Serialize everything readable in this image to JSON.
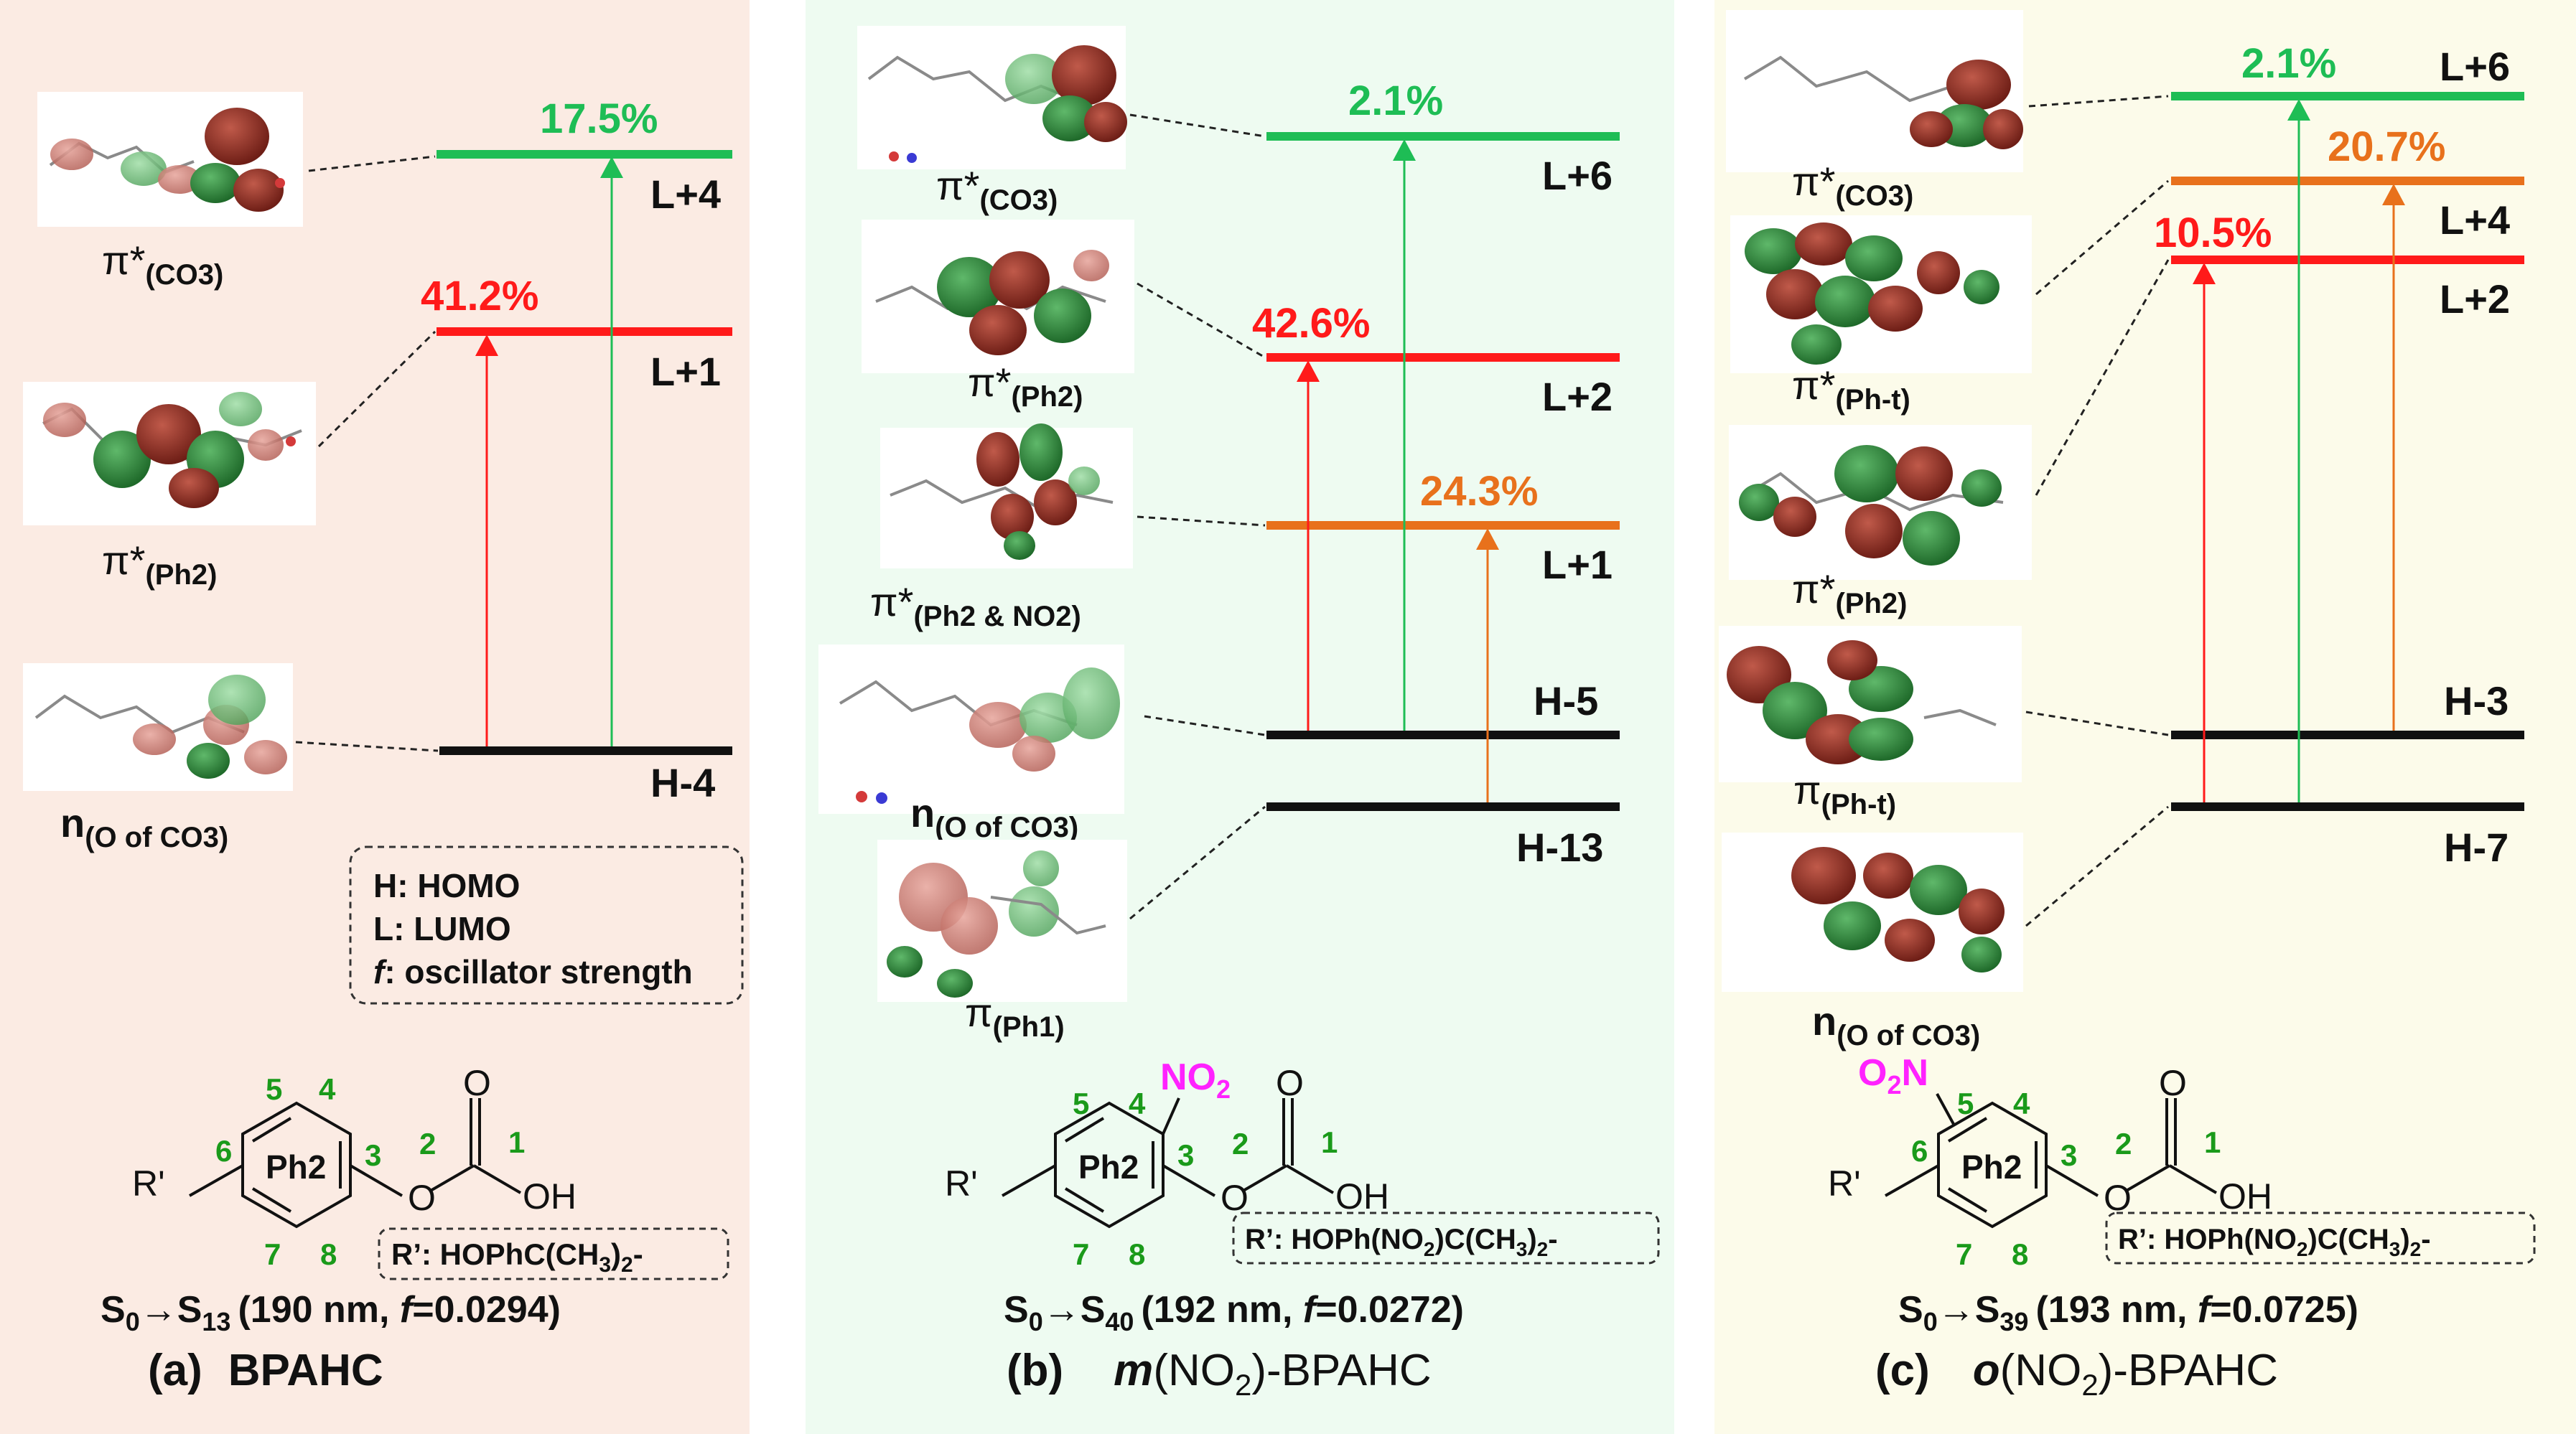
{
  "colors": {
    "panel_a_bg": "#fbebe3",
    "panel_b_bg": "#eefbf1",
    "panel_c_bg": "#fcfbea",
    "green": "#1ebd55",
    "red": "#ff1a1a",
    "orange": "#e8711c",
    "black": "#111111",
    "label_green": "#1a9a1a",
    "magenta": "#ff22ff",
    "orbital_red": "#8f2a20",
    "orbital_green": "#2f8a3a"
  },
  "legend": {
    "line1": "H: HOMO",
    "line2": "L: LUMO",
    "line3_f": "f",
    "line3_rest": ": oscillator strength"
  },
  "panels": [
    {
      "id": "a",
      "caption_letter": "(a)",
      "caption_name": "BPAHC",
      "transition": {
        "s0": "S",
        "s0_sub": "0",
        "arrow": "→",
        "sn": "S",
        "sn_sub": "13",
        "wavelength": "190 nm, ",
        "f_label": "f",
        "f_value": "=0.0294)",
        "open": "("
      },
      "levels": [
        {
          "label": "L+4",
          "color": "green"
        },
        {
          "label": "L+1",
          "color": "red"
        },
        {
          "label": "H-4",
          "color": "black"
        }
      ],
      "transitions": [
        {
          "percent": "17.5%",
          "color": "green"
        },
        {
          "percent": "41.2%",
          "color": "red"
        }
      ],
      "orbitals": [
        {
          "main": "π*",
          "sub": "(CO3)"
        },
        {
          "main": "π*",
          "sub": "(Ph2)"
        },
        {
          "main": "n",
          "sub": "(O of CO3)"
        }
      ],
      "structure": {
        "r_group": "R'",
        "ring": "Ph2",
        "oh": "OH",
        "no2": "",
        "r_def_prefix": "R’: HOPhC(CH",
        "r_def_sub": "3",
        "r_def_suffix": ")",
        "r_def_sub2": "2",
        "r_def_end": "-",
        "numbers": [
          "1",
          "2",
          "3",
          "4",
          "5",
          "6",
          "7",
          "8"
        ]
      }
    },
    {
      "id": "b",
      "caption_letter": "(b)",
      "caption_name_italic": "m",
      "caption_name": "(NO",
      "caption_sub": "2",
      "caption_end": ")-BPAHC",
      "transition": {
        "s0": "S",
        "s0_sub": "0",
        "arrow": "→",
        "sn": "S",
        "sn_sub": "40",
        "wavelength": "192 nm, ",
        "f_label": "f",
        "f_value": "=0.0272)",
        "open": "("
      },
      "levels": [
        {
          "label": "L+6",
          "color": "green"
        },
        {
          "label": "L+2",
          "color": "red"
        },
        {
          "label": "L+1",
          "color": "orange"
        },
        {
          "label": "H-5",
          "color": "black"
        },
        {
          "label": "H-13",
          "color": "black"
        }
      ],
      "transitions": [
        {
          "percent": "2.1%",
          "color": "green"
        },
        {
          "percent": "42.6%",
          "color": "red"
        },
        {
          "percent": "24.3%",
          "color": "orange"
        }
      ],
      "orbitals": [
        {
          "main": "π*",
          "sub": "(CO3)"
        },
        {
          "main": "π*",
          "sub": "(Ph2)"
        },
        {
          "main": "π*",
          "sub": "(Ph2 & NO2)"
        },
        {
          "main": "n",
          "sub": "(O of CO3)"
        },
        {
          "main": "π",
          "sub": "(Ph1)"
        }
      ],
      "structure": {
        "r_group": "R'",
        "ring": "Ph2",
        "oh": "OH",
        "no2_main": "NO",
        "no2_sub": "2",
        "r_def": "R’: HOPh(NO",
        "r_def_sub": "2",
        "r_def_mid": ")C(CH",
        "r_def_sub2": "3",
        "r_def_mid2": ")",
        "r_def_sub3": "2",
        "r_def_end": "-",
        "numbers": [
          "1",
          "2",
          "3",
          "4",
          "5",
          "7",
          "8"
        ]
      }
    },
    {
      "id": "c",
      "caption_letter": "(c)",
      "caption_name_italic": "o",
      "caption_name": "(NO",
      "caption_sub": "2",
      "caption_end": ")-BPAHC",
      "transition": {
        "s0": "S",
        "s0_sub": "0",
        "arrow": "→",
        "sn": "S",
        "sn_sub": "39",
        "wavelength": "193 nm, ",
        "f_label": "f",
        "f_value": "=0.0725)",
        "open": "("
      },
      "levels": [
        {
          "label": "L+6",
          "color": "green"
        },
        {
          "label": "L+4",
          "color": "orange"
        },
        {
          "label": "L+2",
          "color": "red"
        },
        {
          "label": "H-3",
          "color": "black"
        },
        {
          "label": "H-7",
          "color": "black"
        }
      ],
      "transitions": [
        {
          "percent": "2.1%",
          "color": "green"
        },
        {
          "percent": "20.7%",
          "color": "orange"
        },
        {
          "percent": "10.5%",
          "color": "red"
        }
      ],
      "orbitals": [
        {
          "main": "π*",
          "sub": "(CO3)"
        },
        {
          "main": "π*",
          "sub": "(Ph-t)"
        },
        {
          "main": "π*",
          "sub": "(Ph2)"
        },
        {
          "main": "π",
          "sub": "(Ph-t)"
        },
        {
          "main": "n",
          "sub": "(O of CO3)"
        }
      ],
      "structure": {
        "r_group": "R'",
        "ring": "Ph2",
        "oh": "OH",
        "no2_main": "O",
        "no2_sub": "2",
        "no2_end": "N",
        "r_def": "R’: HOPh(NO",
        "r_def_sub": "2",
        "r_def_mid": ")C(CH",
        "r_def_sub2": "3",
        "r_def_mid2": ")",
        "r_def_sub3": "2",
        "r_def_end": "-",
        "numbers": [
          "1",
          "2",
          "3",
          "4",
          "5",
          "6",
          "7",
          "8"
        ]
      }
    }
  ]
}
